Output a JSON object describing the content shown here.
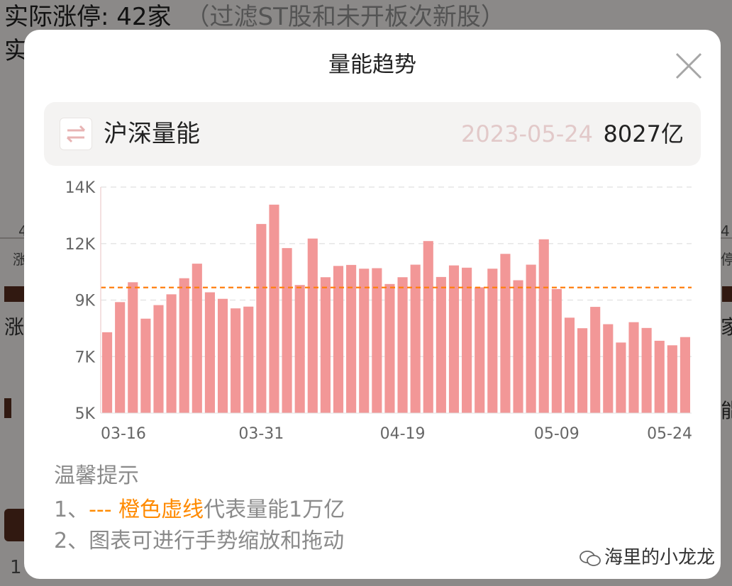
{
  "background": {
    "line1": "实际涨停: 42家",
    "line1_sub": "（过滤ST股和未开板次新股）",
    "line2": "实",
    "left_tag_1": "4",
    "left_tag_2": "涨",
    "left_tag_3": "涨",
    "left_tag_4": "1",
    "right_tag_1": "4",
    "right_tag_2": "停",
    "right_tag_3": "家",
    "right_tag_4": "能"
  },
  "modal": {
    "title": "量能趋势",
    "close_icon": "close-icon",
    "header": {
      "swap_icon": "swap-arrows-icon",
      "label": "沪深量能",
      "date": "2023-05-24",
      "value": "8027亿"
    },
    "tips": {
      "title": "温馨提示",
      "tip1_prefix": "1、",
      "tip1_highlight": "--- 橙色虚线",
      "tip1_suffix": "代表量能1万亿",
      "tip2": "2、图表可进行手势缩放和拖动"
    },
    "watermark": "海里的小龙龙"
  },
  "chart_data": {
    "type": "bar",
    "y_tick_labels": [
      "5K",
      "7K",
      "9K",
      "12K",
      "14K"
    ],
    "x_tick_labels": [
      "03-16",
      "03-31",
      "04-19",
      "05-09",
      "05-24"
    ],
    "ylim": [
      5000,
      14000
    ],
    "reference_line": {
      "value": 10000,
      "color": "#ff7f0e",
      "style": "dashed"
    },
    "bar_color": "#f29797",
    "values": [
      8220,
      9420,
      10210,
      8760,
      9300,
      9730,
      10370,
      10950,
      9810,
      9550,
      9170,
      9240,
      12530,
      13300,
      11570,
      10100,
      11950,
      10410,
      10860,
      10900,
      10750,
      10770,
      10140,
      10410,
      10910,
      11850,
      10420,
      10880,
      10790,
      10010,
      10750,
      11340,
      10290,
      10910,
      11920,
      9940,
      8800,
      8380,
      9230,
      8540,
      7810,
      8620,
      8390,
      7880,
      7700,
      8027
    ]
  }
}
